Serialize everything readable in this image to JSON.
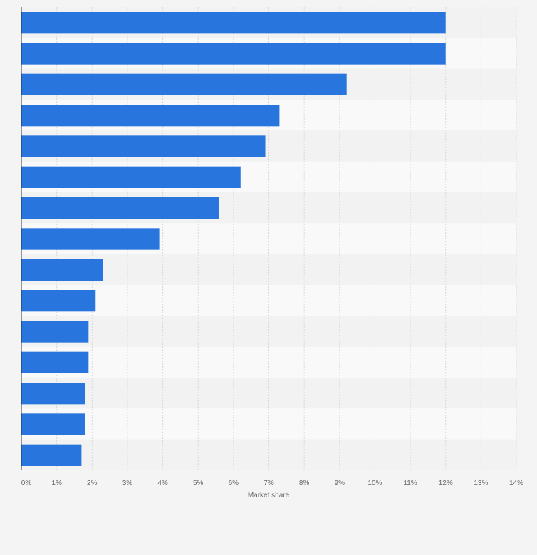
{
  "chart_data": {
    "type": "bar",
    "orientation": "horizontal",
    "categories": [
      "",
      "",
      "",
      "",
      "",
      "",
      "",
      "",
      "",
      "",
      "",
      "",
      "",
      "",
      ""
    ],
    "values": [
      12,
      12,
      9.2,
      7.3,
      6.9,
      6.2,
      5.6,
      3.9,
      2.3,
      2.1,
      1.9,
      1.9,
      1.8,
      1.8,
      1.7
    ],
    "xlabel": "Market share",
    "ylabel": "",
    "xlim": [
      0,
      14
    ],
    "xticks": [
      "0%",
      "1%",
      "2%",
      "3%",
      "4%",
      "5%",
      "6%",
      "7%",
      "8%",
      "9%",
      "10%",
      "11%",
      "12%",
      "13%",
      "14%"
    ],
    "grid": true,
    "bar_color": "#2876dd"
  }
}
